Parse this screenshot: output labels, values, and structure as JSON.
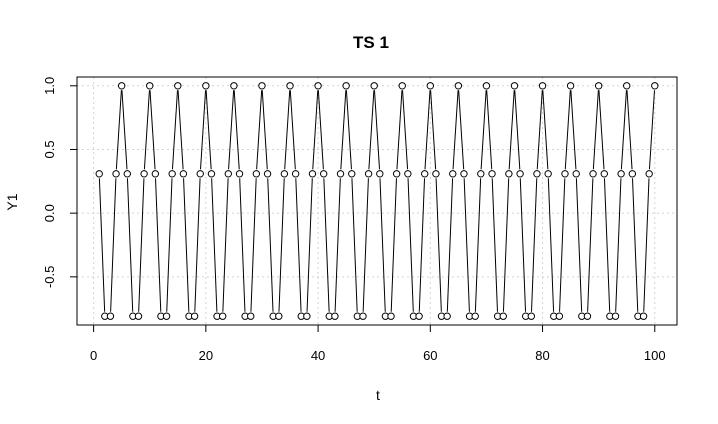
{
  "chart_data": {
    "type": "line",
    "title": "TS 1",
    "xlabel": "t",
    "ylabel": "Y1",
    "xlim": [
      -2.96,
      103.96
    ],
    "ylim": [
      -0.878,
      1.069
    ],
    "x_ticks": [
      "0",
      "20",
      "40",
      "60",
      "80",
      "100"
    ],
    "y_ticks": [
      "-0.5",
      "0.0",
      "0.5",
      "1.0"
    ],
    "grid": true,
    "markers": "open-circle",
    "series": [
      {
        "x": [
          1,
          2,
          3,
          4,
          5,
          6,
          7,
          8,
          9,
          10,
          11,
          12,
          13,
          14,
          15,
          16,
          17,
          18,
          19,
          20,
          21,
          22,
          23,
          24,
          25,
          26,
          27,
          28,
          29,
          30,
          31,
          32,
          33,
          34,
          35,
          36,
          37,
          38,
          39,
          40,
          41,
          42,
          43,
          44,
          45,
          46,
          47,
          48,
          49,
          50,
          51,
          52,
          53,
          54,
          55,
          56,
          57,
          58,
          59,
          60,
          61,
          62,
          63,
          64,
          65,
          66,
          67,
          68,
          69,
          70,
          71,
          72,
          73,
          74,
          75,
          76,
          77,
          78,
          79,
          80,
          81,
          82,
          83,
          84,
          85,
          86,
          87,
          88,
          89,
          90,
          91,
          92,
          93,
          94,
          95,
          96,
          97,
          98,
          99,
          100
        ],
        "values": [
          0.309,
          -0.809,
          -0.809,
          0.309,
          1.0,
          0.309,
          -0.809,
          -0.809,
          0.309,
          1.0,
          0.309,
          -0.809,
          -0.809,
          0.309,
          1.0,
          0.309,
          -0.809,
          -0.809,
          0.309,
          1.0,
          0.309,
          -0.809,
          -0.809,
          0.309,
          1.0,
          0.309,
          -0.809,
          -0.809,
          0.309,
          1.0,
          0.309,
          -0.809,
          -0.809,
          0.309,
          1.0,
          0.309,
          -0.809,
          -0.809,
          0.309,
          1.0,
          0.309,
          -0.809,
          -0.809,
          0.309,
          1.0,
          0.309,
          -0.809,
          -0.809,
          0.309,
          1.0,
          0.309,
          -0.809,
          -0.809,
          0.309,
          1.0,
          0.309,
          -0.809,
          -0.809,
          0.309,
          1.0,
          0.309,
          -0.809,
          -0.809,
          0.309,
          1.0,
          0.309,
          -0.809,
          -0.809,
          0.309,
          1.0,
          0.309,
          -0.809,
          -0.809,
          0.309,
          1.0,
          0.309,
          -0.809,
          -0.809,
          0.309,
          1.0,
          0.309,
          -0.809,
          -0.809,
          0.309,
          1.0,
          0.309,
          -0.809,
          -0.809,
          0.309,
          1.0,
          0.309,
          -0.809,
          -0.809,
          0.309,
          1.0,
          0.309,
          -0.809,
          -0.809,
          0.309,
          1.0
        ]
      }
    ]
  }
}
